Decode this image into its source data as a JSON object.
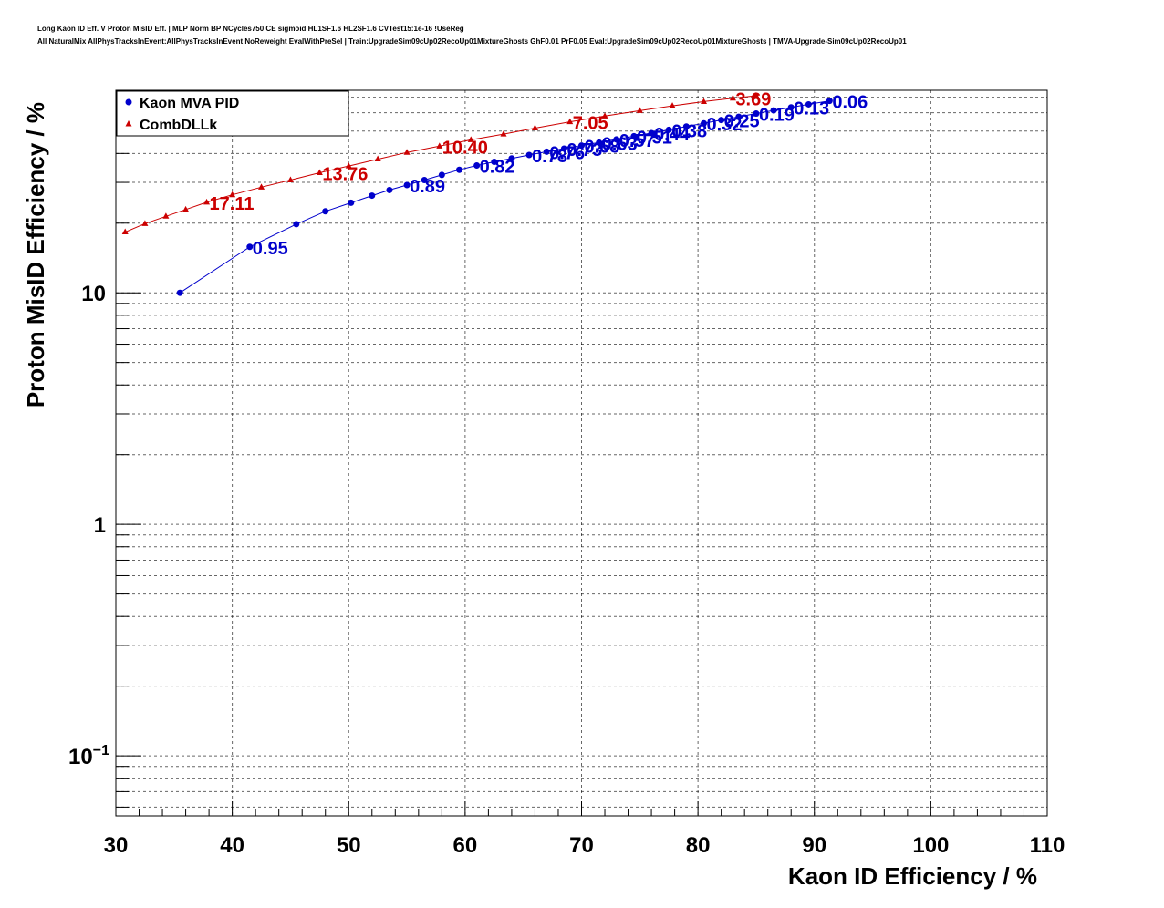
{
  "header": {
    "line1": "Long Kaon ID Eff. V Proton MisID Eff. | MLP Norm BP NCycles750 CE sigmoid HL1SF1.6 HL2SF1.6 CVTest15:1e-16 !UseReg",
    "line2": "All NaturalMix AllPhysTracksInEvent:AllPhysTracksInEvent NoReweight EvalWithPreSel | Train:UpgradeSim09cUp02RecoUp01MixtureGhosts GhF0.01 PrF0.05 Eval:UpgradeSim09cUp02RecoUp01MixtureGhosts | TMVA-Upgrade-Sim09cUp02RecoUp01"
  },
  "chart_data": {
    "type": "line",
    "title": "",
    "xlabel": "Kaon ID Efficiency / %",
    "ylabel": "Proton MisID Efficiency / %",
    "xlim": [
      30,
      110
    ],
    "ylim": [
      0.055,
      75
    ],
    "yscale": "log",
    "grid": true,
    "legend_position": "top-left",
    "x_ticks": [
      "30",
      "40",
      "50",
      "60",
      "70",
      "80",
      "90",
      "100",
      "110"
    ],
    "y_ticks": [
      {
        "value": 0.1,
        "base": "10",
        "exp": "−1"
      },
      {
        "value": 1,
        "base": "1",
        "exp": ""
      },
      {
        "value": 10,
        "base": "10",
        "exp": ""
      }
    ],
    "series": [
      {
        "name": "Kaon MVA PID",
        "color": "#0000cc",
        "marker": "circle",
        "points": [
          [
            35.5,
            10.0
          ],
          [
            41.5,
            15.8
          ],
          [
            45.5,
            19.8
          ],
          [
            48.0,
            22.5
          ],
          [
            50.2,
            24.5
          ],
          [
            52.0,
            26.3
          ],
          [
            53.5,
            27.8
          ],
          [
            55.0,
            29.2
          ],
          [
            56.5,
            30.7
          ],
          [
            58.0,
            32.3
          ],
          [
            59.5,
            34.0
          ],
          [
            61.0,
            35.5
          ],
          [
            62.5,
            36.8
          ],
          [
            64.0,
            38.1
          ],
          [
            65.5,
            39.4
          ],
          [
            67.0,
            40.7
          ],
          [
            68.5,
            42.0
          ],
          [
            70.0,
            43.3
          ],
          [
            71.5,
            44.6
          ],
          [
            73.0,
            46.0
          ],
          [
            74.5,
            47.5
          ],
          [
            76.0,
            49.0
          ],
          [
            77.5,
            50.6
          ],
          [
            79.0,
            52.3
          ],
          [
            80.5,
            54.0
          ],
          [
            82.0,
            55.8
          ],
          [
            83.5,
            57.6
          ],
          [
            85.0,
            59.5
          ],
          [
            86.5,
            61.4
          ],
          [
            88.0,
            63.3
          ],
          [
            89.5,
            65.2
          ],
          [
            91.3,
            67.5
          ]
        ],
        "labels": [
          {
            "text": "0.95",
            "x": 41.5,
            "y": 15.8
          },
          {
            "text": "0.89",
            "x": 55.0,
            "y": 29.2
          },
          {
            "text": "0.82",
            "x": 61.0,
            "y": 35.5
          },
          {
            "text": "0.78",
            "x": 65.5,
            "y": 39.4
          },
          {
            "text": "0.76",
            "x": 67.0,
            "y": 40.7
          },
          {
            "text": "0.73",
            "x": 68.5,
            "y": 42.0
          },
          {
            "text": "0.68",
            "x": 70.0,
            "y": 43.3
          },
          {
            "text": "0.63",
            "x": 71.5,
            "y": 44.6
          },
          {
            "text": "0.57",
            "x": 73.0,
            "y": 46.0
          },
          {
            "text": "0.51",
            "x": 74.5,
            "y": 47.5
          },
          {
            "text": "0.44",
            "x": 76.0,
            "y": 49.0
          },
          {
            "text": "0.38",
            "x": 77.5,
            "y": 50.6
          },
          {
            "text": "0.32",
            "x": 80.5,
            "y": 54.0
          },
          {
            "text": "0.25",
            "x": 82.0,
            "y": 55.8
          },
          {
            "text": "0.19",
            "x": 85.0,
            "y": 59.5
          },
          {
            "text": "0.13",
            "x": 88.0,
            "y": 63.3
          },
          {
            "text": "0.06",
            "x": 91.3,
            "y": 67.5
          }
        ]
      },
      {
        "name": "CombDLLk",
        "color": "#cc0000",
        "marker": "triangle",
        "points": [
          [
            30.8,
            18.3
          ],
          [
            32.5,
            19.9
          ],
          [
            34.3,
            21.4
          ],
          [
            36.0,
            22.9
          ],
          [
            37.8,
            24.6
          ],
          [
            40.0,
            26.5
          ],
          [
            42.5,
            28.6
          ],
          [
            45.0,
            30.7
          ],
          [
            47.5,
            33.0
          ],
          [
            50.0,
            35.3
          ],
          [
            52.5,
            37.8
          ],
          [
            55.0,
            40.4
          ],
          [
            57.8,
            43.0
          ],
          [
            60.5,
            45.8
          ],
          [
            63.3,
            48.5
          ],
          [
            66.0,
            51.5
          ],
          [
            69.0,
            54.8
          ],
          [
            72.0,
            58.0
          ],
          [
            75.0,
            61.2
          ],
          [
            77.8,
            64.2
          ],
          [
            80.5,
            67.0
          ],
          [
            83.0,
            69.3
          ],
          [
            85.0,
            71.0
          ]
        ],
        "labels": [
          {
            "text": "17.11",
            "x": 37.8,
            "y": 24.6
          },
          {
            "text": "13.76",
            "x": 47.5,
            "y": 33.0
          },
          {
            "text": "10.40",
            "x": 57.8,
            "y": 43.0
          },
          {
            "text": "7.05",
            "x": 69.0,
            "y": 54.8
          },
          {
            "text": "3.69",
            "x": 83.0,
            "y": 69.3
          }
        ]
      }
    ]
  }
}
